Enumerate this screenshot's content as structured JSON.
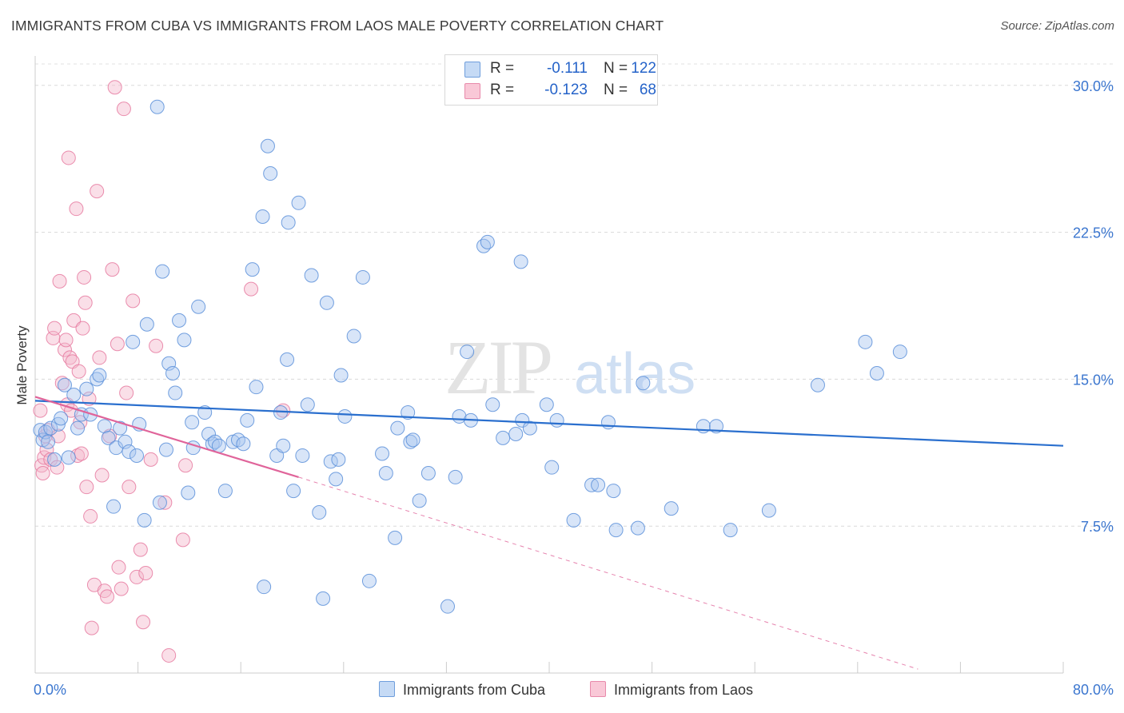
{
  "title": "IMMIGRANTS FROM CUBA VS IMMIGRANTS FROM LAOS MALE POVERTY CORRELATION CHART",
  "source": "Source: ZipAtlas.com",
  "watermark": {
    "zip": "ZIP",
    "atlas": "atlas"
  },
  "legend": {
    "r_label": "R =",
    "n_label": "N =",
    "cuba": {
      "r": "-0.111",
      "n": "122"
    },
    "laos": {
      "r": "-0.123",
      "n": "68"
    }
  },
  "chart_data": {
    "type": "scatter",
    "title": "IMMIGRANTS FROM CUBA VS IMMIGRANTS FROM LAOS MALE POVERTY CORRELATION CHART",
    "xlabel": "",
    "ylabel": "Male Poverty",
    "xlim": [
      0,
      80
    ],
    "ylim": [
      0,
      31.5
    ],
    "x_tick_labels": [
      "0.0%",
      "80.0%"
    ],
    "y_ticks": [
      7.5,
      15.0,
      22.5,
      30.0
    ],
    "y_tick_labels": [
      "7.5%",
      "15.0%",
      "22.5%",
      "30.0%"
    ],
    "colors": {
      "cuba": "#5b8fd9",
      "cuba_fill": "#a9c6ef",
      "cuba_line": "#2a6fce",
      "laos": "#e67aa0",
      "laos_fill": "#f5b8cc",
      "laos_line": "#e0649a",
      "tick_label": "#3b76cf"
    },
    "series": [
      {
        "name": "Immigrants from Cuba",
        "trend": {
          "x0": 0,
          "y0": 13.9,
          "x1": 80,
          "y1": 11.6
        },
        "points": [
          [
            0.4,
            12.4
          ],
          [
            0.6,
            11.9
          ],
          [
            0.8,
            12.3
          ],
          [
            1.0,
            11.8
          ],
          [
            1.2,
            12.5
          ],
          [
            1.5,
            10.9
          ],
          [
            1.8,
            12.7
          ],
          [
            2.0,
            13.0
          ],
          [
            2.3,
            14.7
          ],
          [
            2.6,
            11.0
          ],
          [
            3.0,
            14.2
          ],
          [
            3.3,
            12.5
          ],
          [
            3.6,
            13.2
          ],
          [
            4.0,
            14.5
          ],
          [
            4.3,
            13.2
          ],
          [
            4.8,
            15.0
          ],
          [
            5.0,
            15.2
          ],
          [
            5.4,
            12.6
          ],
          [
            5.7,
            12.0
          ],
          [
            6.1,
            8.5
          ],
          [
            6.3,
            11.5
          ],
          [
            6.6,
            12.5
          ],
          [
            7.0,
            11.8
          ],
          [
            7.3,
            11.3
          ],
          [
            7.6,
            16.9
          ],
          [
            7.9,
            11.1
          ],
          [
            8.1,
            12.7
          ],
          [
            8.5,
            7.8
          ],
          [
            8.7,
            17.8
          ],
          [
            9.5,
            28.9
          ],
          [
            9.7,
            8.7
          ],
          [
            9.9,
            20.5
          ],
          [
            10.2,
            11.4
          ],
          [
            10.4,
            15.8
          ],
          [
            10.7,
            15.3
          ],
          [
            10.9,
            14.3
          ],
          [
            11.2,
            18.0
          ],
          [
            11.6,
            17.0
          ],
          [
            11.9,
            9.2
          ],
          [
            12.2,
            12.8
          ],
          [
            12.3,
            11.5
          ],
          [
            12.7,
            18.7
          ],
          [
            13.2,
            13.3
          ],
          [
            13.5,
            12.2
          ],
          [
            13.8,
            11.7
          ],
          [
            14.0,
            11.8
          ],
          [
            14.3,
            11.6
          ],
          [
            14.8,
            9.3
          ],
          [
            15.4,
            11.8
          ],
          [
            15.8,
            11.9
          ],
          [
            16.2,
            11.7
          ],
          [
            16.5,
            12.9
          ],
          [
            16.9,
            20.6
          ],
          [
            17.2,
            14.6
          ],
          [
            17.7,
            23.3
          ],
          [
            17.8,
            4.4
          ],
          [
            18.1,
            26.9
          ],
          [
            18.3,
            25.5
          ],
          [
            18.8,
            11.1
          ],
          [
            19.1,
            13.3
          ],
          [
            19.3,
            11.6
          ],
          [
            19.6,
            16.0
          ],
          [
            19.7,
            23.0
          ],
          [
            20.1,
            9.3
          ],
          [
            20.5,
            24.0
          ],
          [
            20.8,
            11.1
          ],
          [
            21.2,
            13.7
          ],
          [
            21.5,
            20.3
          ],
          [
            22.1,
            8.2
          ],
          [
            22.4,
            3.8
          ],
          [
            22.7,
            18.9
          ],
          [
            23.0,
            10.8
          ],
          [
            23.4,
            9.9
          ],
          [
            23.6,
            10.9
          ],
          [
            23.8,
            15.2
          ],
          [
            24.1,
            13.1
          ],
          [
            24.8,
            17.2
          ],
          [
            25.5,
            20.2
          ],
          [
            26.0,
            4.7
          ],
          [
            27.0,
            11.2
          ],
          [
            27.3,
            10.2
          ],
          [
            28.0,
            6.9
          ],
          [
            28.2,
            12.5
          ],
          [
            29.0,
            13.3
          ],
          [
            29.2,
            11.8
          ],
          [
            29.4,
            11.9
          ],
          [
            29.9,
            8.8
          ],
          [
            30.6,
            10.2
          ],
          [
            32.1,
            3.4
          ],
          [
            32.7,
            10.0
          ],
          [
            33.0,
            13.1
          ],
          [
            33.6,
            16.4
          ],
          [
            33.9,
            12.9
          ],
          [
            34.9,
            21.8
          ],
          [
            35.2,
            22.0
          ],
          [
            35.6,
            13.7
          ],
          [
            36.4,
            12.0
          ],
          [
            37.4,
            12.2
          ],
          [
            37.8,
            21.0
          ],
          [
            37.9,
            12.9
          ],
          [
            38.5,
            12.5
          ],
          [
            39.8,
            13.7
          ],
          [
            40.2,
            10.5
          ],
          [
            40.6,
            12.9
          ],
          [
            41.9,
            7.8
          ],
          [
            43.3,
            9.6
          ],
          [
            43.8,
            9.6
          ],
          [
            44.6,
            12.8
          ],
          [
            45.0,
            9.3
          ],
          [
            45.2,
            7.3
          ],
          [
            46.9,
            7.4
          ],
          [
            47.3,
            14.8
          ],
          [
            49.5,
            8.4
          ],
          [
            52.0,
            12.6
          ],
          [
            53.0,
            12.6
          ],
          [
            54.1,
            7.3
          ],
          [
            57.1,
            8.3
          ],
          [
            60.9,
            14.7
          ],
          [
            64.6,
            16.9
          ],
          [
            65.5,
            15.3
          ],
          [
            67.3,
            16.4
          ]
        ]
      },
      {
        "name": "Immigrants from Laos",
        "trend": {
          "x0": 0,
          "y0": 14.1,
          "x1": 20.5,
          "y1": 10.0,
          "dashed_to": {
            "x": 68.7,
            "y": 0.2
          }
        },
        "points": [
          [
            0.4,
            13.4
          ],
          [
            0.5,
            10.6
          ],
          [
            0.6,
            10.2
          ],
          [
            0.7,
            11.0
          ],
          [
            0.8,
            12.1
          ],
          [
            0.9,
            11.4
          ],
          [
            1.0,
            12.4
          ],
          [
            1.2,
            10.9
          ],
          [
            1.4,
            17.1
          ],
          [
            1.5,
            17.6
          ],
          [
            1.7,
            10.5
          ],
          [
            1.8,
            12.1
          ],
          [
            1.9,
            20.0
          ],
          [
            2.1,
            14.8
          ],
          [
            2.3,
            16.5
          ],
          [
            2.4,
            17.0
          ],
          [
            2.5,
            13.7
          ],
          [
            2.6,
            26.3
          ],
          [
            2.7,
            16.1
          ],
          [
            2.8,
            13.4
          ],
          [
            2.9,
            15.9
          ],
          [
            3.0,
            18.0
          ],
          [
            3.2,
            23.7
          ],
          [
            3.3,
            11.1
          ],
          [
            3.4,
            15.4
          ],
          [
            3.5,
            12.8
          ],
          [
            3.6,
            11.2
          ],
          [
            3.7,
            17.6
          ],
          [
            3.8,
            20.2
          ],
          [
            3.9,
            18.9
          ],
          [
            4.0,
            9.5
          ],
          [
            4.2,
            14.0
          ],
          [
            4.3,
            8.0
          ],
          [
            4.4,
            2.3
          ],
          [
            4.6,
            4.5
          ],
          [
            4.8,
            24.6
          ],
          [
            5.0,
            16.1
          ],
          [
            5.2,
            10.1
          ],
          [
            5.4,
            4.2
          ],
          [
            5.6,
            3.9
          ],
          [
            5.8,
            12.1
          ],
          [
            6.0,
            20.6
          ],
          [
            6.2,
            29.9
          ],
          [
            6.4,
            16.8
          ],
          [
            6.5,
            5.4
          ],
          [
            6.7,
            4.3
          ],
          [
            6.9,
            28.8
          ],
          [
            7.1,
            14.3
          ],
          [
            7.3,
            9.5
          ],
          [
            7.6,
            19.0
          ],
          [
            7.9,
            4.9
          ],
          [
            8.2,
            6.3
          ],
          [
            8.4,
            2.6
          ],
          [
            8.6,
            5.1
          ],
          [
            9.0,
            10.9
          ],
          [
            9.4,
            16.7
          ],
          [
            10.1,
            8.7
          ],
          [
            10.4,
            0.9
          ],
          [
            11.5,
            6.8
          ],
          [
            11.7,
            10.6
          ],
          [
            16.8,
            19.6
          ],
          [
            19.3,
            13.4
          ]
        ]
      }
    ]
  },
  "bottom_legend": {
    "cuba": "Immigrants from Cuba",
    "laos": "Immigrants from Laos"
  }
}
